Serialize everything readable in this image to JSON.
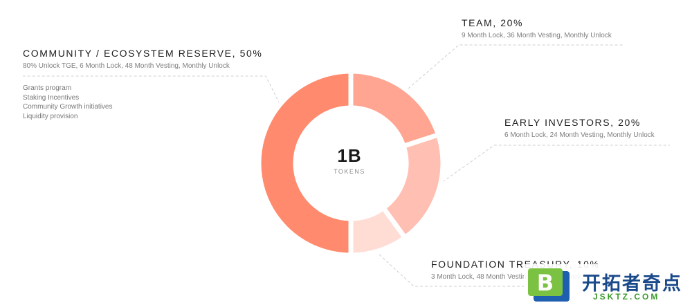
{
  "chart_data": {
    "type": "pie",
    "style": "donut",
    "total_value": "1B",
    "total_unit": "TOKENS",
    "slices": [
      {
        "title": "COMMUNITY / ECOSYSTEM RESERVE, 50%",
        "value": 50,
        "detail": "80% Unlock TGE, 6 Month Lock, 48 Month Vesting, Monthly Unlock",
        "color": "#ff8a6e",
        "bullets": [
          "Grants program",
          "Staking Incentives",
          "Community Growth initiatives",
          "Liquidity provision"
        ]
      },
      {
        "title": "TEAM, 20%",
        "value": 20,
        "detail": "9 Month Lock, 36 Month Vesting, Monthly Unlock",
        "color": "#ffa591"
      },
      {
        "title": "EARLY INVESTORS, 20%",
        "value": 20,
        "detail": "6 Month Lock, 24 Month Vesting, Monthly Unlock",
        "color": "#ffc0b3"
      },
      {
        "title": "FOUNDATION TREASURY, 10%",
        "value": 10,
        "detail": "3 Month Lock, 48 Month Vesting, Monthly Unlock",
        "color": "#ffdcd4"
      }
    ]
  },
  "watermark": {
    "badge_letter": "B",
    "text": "开拓者奇点",
    "url": "JSKTZ.COM"
  }
}
